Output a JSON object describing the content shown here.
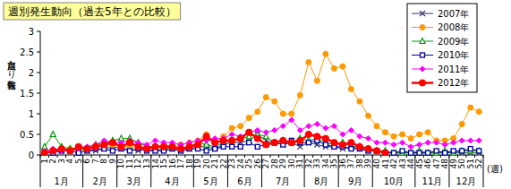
{
  "chart_data": {
    "type": "line",
    "title": "週別発生動向（過去5年との比較）",
    "y_label": "定点当たり報告数",
    "x_label": "(週)",
    "categories": [
      1,
      2,
      3,
      4,
      5,
      6,
      7,
      8,
      9,
      10,
      11,
      12,
      13,
      14,
      15,
      16,
      17,
      18,
      19,
      20,
      21,
      22,
      23,
      24,
      25,
      26,
      27,
      28,
      29,
      30,
      31,
      32,
      33,
      34,
      35,
      36,
      37,
      38,
      39,
      40,
      41,
      42,
      43,
      44,
      45,
      46,
      47,
      48,
      49,
      50,
      51,
      52
    ],
    "x_groups": [
      {
        "label": "1月",
        "span": [
          1,
          5
        ]
      },
      {
        "label": "2月",
        "span": [
          6,
          9
        ]
      },
      {
        "label": "3月",
        "span": [
          10,
          13
        ]
      },
      {
        "label": "4月",
        "span": [
          14,
          18
        ]
      },
      {
        "label": "5月",
        "span": [
          19,
          22
        ]
      },
      {
        "label": "6月",
        "span": [
          23,
          26
        ]
      },
      {
        "label": "7月",
        "span": [
          27,
          31
        ]
      },
      {
        "label": "8月",
        "span": [
          32,
          35
        ]
      },
      {
        "label": "9月",
        "span": [
          36,
          39
        ]
      },
      {
        "label": "10月",
        "span": [
          40,
          44
        ]
      },
      {
        "label": "11月",
        "span": [
          45,
          48
        ]
      },
      {
        "label": "12月",
        "span": [
          49,
          52
        ]
      }
    ],
    "ylim": [
      0,
      3
    ],
    "yticks": [
      0,
      0.5,
      1,
      1.5,
      2,
      2.5,
      3
    ],
    "grid": false,
    "legend": "top-right",
    "series": [
      {
        "name": "2007年",
        "color": "#333366",
        "marker": "x",
        "line_style": "solid",
        "values": [
          0.05,
          0.1,
          0.1,
          0.1,
          0.15,
          0.1,
          0.1,
          0.15,
          0.2,
          0.15,
          0.15,
          0.1,
          0.15,
          0.1,
          0.15,
          0.15,
          0.1,
          0.15,
          0.2,
          0.2,
          0.15,
          0.25,
          0.3,
          0.3,
          0.35,
          0.5,
          0.35,
          0.3,
          0.25,
          0.3,
          0.2,
          0.3,
          0.25,
          0.2,
          0.2,
          0.15,
          0.2,
          0.15,
          0.1,
          0.1,
          0.05,
          0.05,
          0.05,
          0.05,
          0.05,
          0.05,
          0.05,
          0.05,
          0.05,
          0.05,
          0.05,
          0.05
        ]
      },
      {
        "name": "2008年",
        "color": "#ff9900",
        "marker": "circle",
        "line_style": "solid",
        "values": [
          0.05,
          0.1,
          0.1,
          0.15,
          0.1,
          0.15,
          0.2,
          0.2,
          0.25,
          0.2,
          0.2,
          0.15,
          0.2,
          0.2,
          0.25,
          0.2,
          0.25,
          0.3,
          0.35,
          0.5,
          0.3,
          0.45,
          0.65,
          0.7,
          0.9,
          1.05,
          1.4,
          1.3,
          1.0,
          1.0,
          1.45,
          2.25,
          1.8,
          2.45,
          2.1,
          2.15,
          1.6,
          1.3,
          0.95,
          0.7,
          0.55,
          0.45,
          0.5,
          0.4,
          0.5,
          0.55,
          0.35,
          0.35,
          0.4,
          0.75,
          1.15,
          1.05
        ]
      },
      {
        "name": "2009年",
        "color": "#009900",
        "marker": "triangle",
        "line_style": "solid",
        "values": [
          0.2,
          0.5,
          0.2,
          0.15,
          0.1,
          0.15,
          0.25,
          0.3,
          0.35,
          0.4,
          0.4,
          0.3,
          0.2,
          0.2,
          0.15,
          0.2,
          0.15,
          0.2,
          0.3,
          0.25,
          0.2,
          0.3,
          0.35,
          0.4,
          0.45,
          0.5,
          0.45,
          0.3,
          0.35,
          0.3,
          0.4,
          0.35,
          0.4,
          0.3,
          0.25,
          0.3,
          0.2,
          0.2,
          0.15,
          0.1,
          0.1,
          0.05,
          0.05,
          0.05,
          0.1,
          0.05,
          0.05,
          0.1,
          0.05,
          0.1,
          0.1,
          0.1
        ]
      },
      {
        "name": "2010年",
        "color": "#000099",
        "marker": "square",
        "line_style": "solid",
        "values": [
          0.05,
          0.05,
          0.1,
          0.1,
          0.05,
          0.1,
          0.15,
          0.15,
          0.1,
          0.15,
          0.1,
          0.15,
          0.1,
          0.1,
          0.1,
          0.15,
          0.1,
          0.15,
          0.15,
          0.1,
          0.15,
          0.2,
          0.2,
          0.2,
          0.3,
          0.2,
          0.25,
          0.3,
          0.25,
          0.35,
          0.3,
          0.3,
          0.35,
          0.25,
          0.2,
          0.2,
          0.15,
          0.15,
          0.1,
          0.1,
          0.05,
          0.05,
          0.1,
          0.05,
          0.05,
          0.05,
          0.1,
          0.05,
          0.1,
          0.1,
          0.15,
          0.1
        ]
      },
      {
        "name": "2011年",
        "color": "#ff00ff",
        "marker": "diamond",
        "line_style": "solid",
        "values": [
          0.1,
          0.15,
          0.1,
          0.1,
          0.15,
          0.2,
          0.25,
          0.35,
          0.3,
          0.3,
          0.35,
          0.3,
          0.25,
          0.35,
          0.3,
          0.3,
          0.25,
          0.3,
          0.35,
          0.35,
          0.4,
          0.4,
          0.5,
          0.45,
          0.55,
          0.6,
          0.55,
          0.6,
          0.7,
          0.85,
          0.6,
          0.7,
          0.75,
          0.65,
          0.7,
          0.5,
          0.6,
          0.45,
          0.4,
          0.3,
          0.3,
          0.25,
          0.3,
          0.2,
          0.25,
          0.3,
          0.3,
          0.25,
          0.3,
          0.35,
          0.35,
          0.35
        ]
      },
      {
        "name": "2012年",
        "color": "#ff0000",
        "marker": "circle",
        "line_style": "bold",
        "values": [
          0.05,
          0.1,
          0.15,
          0.1,
          0.2,
          0.15,
          0.2,
          0.25,
          0.3,
          0.2,
          0.3,
          0.2,
          0.15,
          0.2,
          0.2,
          0.2,
          0.15,
          0.2,
          0.25,
          0.45,
          0.3,
          0.35,
          0.35,
          0.4,
          0.55,
          0.4,
          0.25,
          0.3,
          0.35,
          0.3,
          0.35,
          0.5,
          0.45,
          0.4,
          0.3,
          0.25,
          0.3,
          0.2,
          0.15,
          0.1,
          0.05,
          null,
          null,
          null,
          null,
          null,
          null,
          null,
          null,
          null,
          null,
          null
        ]
      }
    ]
  }
}
